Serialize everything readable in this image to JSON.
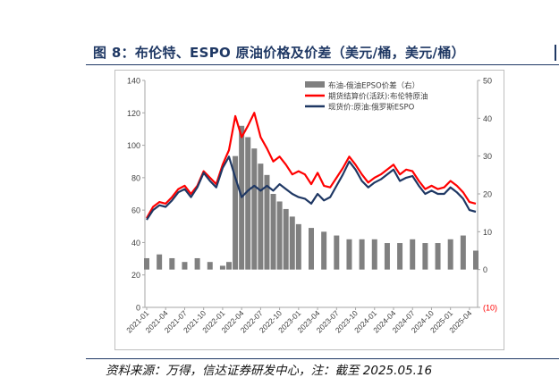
{
  "figure": {
    "title": "图 8：布伦特、ESPO 原油价格及价差（美元/桶，美元/桶）",
    "source": "资料来源：万得，信达证券研发中心，注：截至 2025.05.16"
  },
  "colors": {
    "brent": "#ff0000",
    "espo": "#1f3864",
    "spread": "#808080",
    "title": "#1f3864"
  },
  "chart_data": {
    "type": "line",
    "legend_position": "top-center",
    "x_ticks": [
      "2021-01",
      "2021-04",
      "2021-07",
      "2021-10",
      "2022-01",
      "2022-04",
      "2022-07",
      "2022-10",
      "2023-01",
      "2023-04",
      "2023-07",
      "2023-10",
      "2024-01",
      "2024-04",
      "2024-07",
      "2024-10",
      "2025-01",
      "2025-04"
    ],
    "y_left": {
      "ticks": [
        "0",
        "20",
        "40",
        "60",
        "80",
        "100",
        "120",
        "140"
      ],
      "range": [
        0,
        140
      ]
    },
    "y_right": {
      "ticks": [
        "(10)",
        "0",
        "10",
        "20",
        "30",
        "40",
        "50"
      ],
      "range": [
        -10,
        50
      ]
    },
    "series": [
      {
        "name": "布油-俄油EPSO价差（右）",
        "kind": "bar",
        "axis": "right",
        "x": [
          "2021-01",
          "2021-03",
          "2021-05",
          "2021-07",
          "2021-09",
          "2021-11",
          "2022-01",
          "2022-02",
          "2022-03",
          "2022-04",
          "2022-05",
          "2022-06",
          "2022-07",
          "2022-08",
          "2022-09",
          "2022-10",
          "2022-11",
          "2022-12",
          "2023-01",
          "2023-03",
          "2023-05",
          "2023-07",
          "2023-09",
          "2023-11",
          "2024-01",
          "2024-03",
          "2024-05",
          "2024-07",
          "2024-09",
          "2024-11",
          "2025-01",
          "2025-03",
          "2025-05"
        ],
        "values": [
          3,
          4,
          3,
          2,
          3,
          2,
          1,
          2,
          30,
          38,
          35,
          32,
          28,
          25,
          20,
          18,
          16,
          14,
          12,
          11,
          10,
          9,
          8,
          8,
          8,
          7,
          7,
          8,
          7,
          7,
          8,
          9,
          5
        ]
      },
      {
        "name": "期货结算价(活跃):布伦特原油",
        "kind": "line",
        "axis": "left",
        "x": [
          "2021-01",
          "2021-02",
          "2021-03",
          "2021-04",
          "2021-05",
          "2021-06",
          "2021-07",
          "2021-08",
          "2021-09",
          "2021-10",
          "2021-11",
          "2021-12",
          "2022-01",
          "2022-02",
          "2022-03",
          "2022-04",
          "2022-05",
          "2022-06",
          "2022-07",
          "2022-08",
          "2022-09",
          "2022-10",
          "2022-11",
          "2022-12",
          "2023-01",
          "2023-02",
          "2023-03",
          "2023-04",
          "2023-05",
          "2023-06",
          "2023-07",
          "2023-08",
          "2023-09",
          "2023-10",
          "2023-11",
          "2023-12",
          "2024-01",
          "2024-02",
          "2024-03",
          "2024-04",
          "2024-05",
          "2024-06",
          "2024-07",
          "2024-08",
          "2024-09",
          "2024-10",
          "2024-11",
          "2024-12",
          "2025-01",
          "2025-02",
          "2025-03",
          "2025-04",
          "2025-05"
        ],
        "values": [
          55,
          62,
          65,
          64,
          68,
          73,
          75,
          70,
          75,
          84,
          80,
          76,
          88,
          97,
          118,
          105,
          112,
          120,
          105,
          98,
          90,
          93,
          88,
          82,
          84,
          82,
          76,
          83,
          75,
          74,
          80,
          86,
          93,
          88,
          82,
          77,
          80,
          82,
          85,
          88,
          82,
          85,
          84,
          78,
          73,
          75,
          73,
          74,
          78,
          75,
          71,
          65,
          64
        ]
      },
      {
        "name": "现货价:原油:俄罗斯ESPO",
        "kind": "line",
        "axis": "left",
        "x": [
          "2021-01",
          "2021-02",
          "2021-03",
          "2021-04",
          "2021-05",
          "2021-06",
          "2021-07",
          "2021-08",
          "2021-09",
          "2021-10",
          "2021-11",
          "2021-12",
          "2022-01",
          "2022-02",
          "2022-03",
          "2022-04",
          "2022-05",
          "2022-06",
          "2022-07",
          "2022-08",
          "2022-09",
          "2022-10",
          "2022-11",
          "2022-12",
          "2023-01",
          "2023-02",
          "2023-03",
          "2023-04",
          "2023-05",
          "2023-06",
          "2023-07",
          "2023-08",
          "2023-09",
          "2023-10",
          "2023-11",
          "2023-12",
          "2024-01",
          "2024-02",
          "2024-03",
          "2024-04",
          "2024-05",
          "2024-06",
          "2024-07",
          "2024-08",
          "2024-09",
          "2024-10",
          "2024-11",
          "2024-12",
          "2025-01",
          "2025-02",
          "2025-03",
          "2025-04",
          "2025-05"
        ],
        "values": [
          54,
          60,
          63,
          62,
          66,
          71,
          73,
          68,
          74,
          83,
          78,
          74,
          86,
          93,
          80,
          68,
          72,
          75,
          72,
          75,
          72,
          76,
          73,
          70,
          68,
          67,
          64,
          70,
          66,
          68,
          75,
          82,
          90,
          85,
          78,
          74,
          77,
          79,
          82,
          85,
          78,
          80,
          81,
          75,
          70,
          72,
          70,
          70,
          74,
          71,
          67,
          60,
          59
        ]
      }
    ]
  }
}
